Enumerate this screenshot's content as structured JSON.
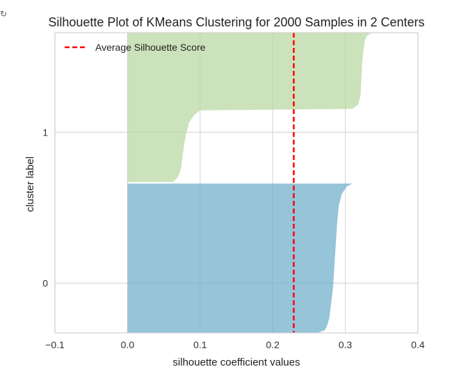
{
  "chart_data": {
    "type": "area",
    "title": "Silhouette Plot of KMeans Clustering for 2000 Samples in 2 Centers",
    "xlabel": "silhouette coefficient values",
    "ylabel": "cluster label",
    "xlim": [
      -0.1,
      0.4
    ],
    "x_ticks": [
      -0.1,
      0.0,
      0.1,
      0.2,
      0.3,
      0.4
    ],
    "x_tick_labels": [
      "−0.1",
      "0.0",
      "0.1",
      "0.2",
      "0.3",
      "0.4"
    ],
    "y_ticks": [
      0,
      1
    ],
    "y_tick_labels": [
      "0",
      "1"
    ],
    "grid": true,
    "legend_position": "top-left",
    "average_score": {
      "name": "Average Silhouette Score",
      "value": 0.229,
      "color": "#ff0000",
      "style": "dashed"
    },
    "clusters": [
      {
        "label": "0",
        "color": "#6aabc9",
        "profile": [
          [
            1.0,
            0.31
          ],
          [
            0.98,
            0.302
          ],
          [
            0.93,
            0.295
          ],
          [
            0.85,
            0.291
          ],
          [
            0.75,
            0.289
          ],
          [
            0.6,
            0.287
          ],
          [
            0.45,
            0.285
          ],
          [
            0.3,
            0.283
          ],
          [
            0.18,
            0.28
          ],
          [
            0.1,
            0.278
          ],
          [
            0.05,
            0.275
          ],
          [
            0.02,
            0.272
          ],
          [
            0.0,
            0.262
          ]
        ]
      },
      {
        "label": "1",
        "color": "#b7d59d",
        "profile": [
          [
            1.0,
            0.34
          ],
          [
            0.995,
            0.335
          ],
          [
            0.98,
            0.33
          ],
          [
            0.95,
            0.327
          ],
          [
            0.88,
            0.325
          ],
          [
            0.78,
            0.323
          ],
          [
            0.68,
            0.322
          ],
          [
            0.58,
            0.321
          ],
          [
            0.52,
            0.318
          ],
          [
            0.49,
            0.31
          ],
          [
            0.48,
            0.1
          ],
          [
            0.45,
            0.092
          ],
          [
            0.4,
            0.085
          ],
          [
            0.33,
            0.081
          ],
          [
            0.25,
            0.078
          ],
          [
            0.18,
            0.076
          ],
          [
            0.1,
            0.074
          ],
          [
            0.05,
            0.071
          ],
          [
            0.02,
            0.067
          ],
          [
            0.0,
            0.062
          ]
        ]
      }
    ]
  }
}
